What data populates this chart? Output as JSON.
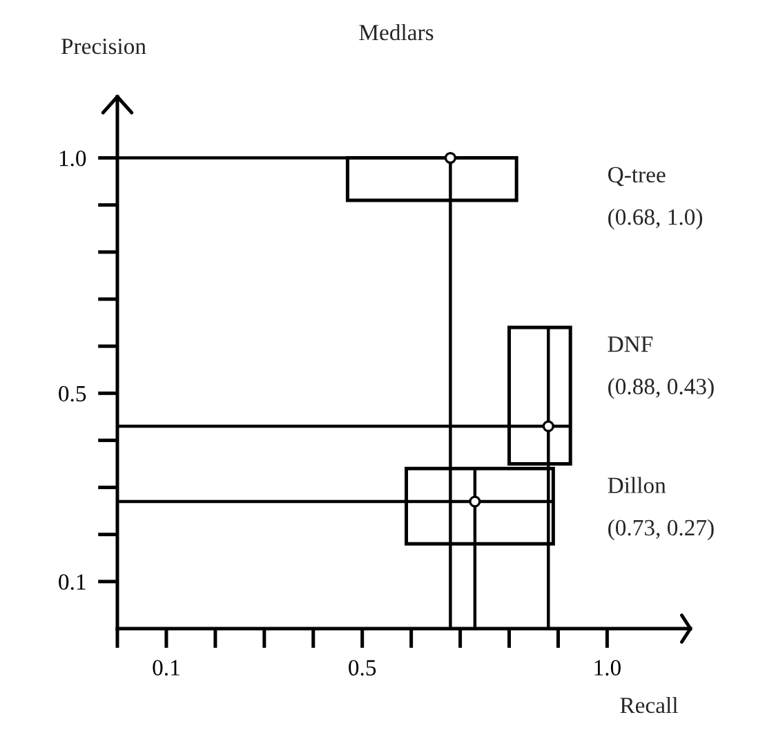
{
  "chart_data": {
    "type": "scatter",
    "title": "Medlars",
    "xlabel": "Recall",
    "ylabel": "Precision",
    "marker": "circle",
    "grid": false,
    "legend": false,
    "xlim": [
      0,
      1.17
    ],
    "ylim": [
      0,
      1.13
    ],
    "xticks": [
      {
        "value": 0,
        "label": null
      },
      0.1,
      {
        "value": 0.2,
        "label": null
      },
      {
        "value": 0.3,
        "label": null
      },
      {
        "value": 0.4,
        "label": null
      },
      0.5,
      {
        "value": 0.6,
        "label": null
      },
      {
        "value": 0.7,
        "label": null
      },
      {
        "value": 0.8,
        "label": null
      },
      {
        "value": 0.9,
        "label": null
      },
      {
        "value": 1.0,
        "label": "1.0"
      }
    ],
    "yticks": [
      0.1,
      {
        "value": 0.2,
        "label": null
      },
      {
        "value": 0.3,
        "label": null
      },
      {
        "value": 0.4,
        "label": null
      },
      0.5,
      {
        "value": 0.6,
        "label": null
      },
      {
        "value": 0.7,
        "label": null
      },
      {
        "value": 0.8,
        "label": null
      },
      {
        "value": 0.9,
        "label": null
      },
      {
        "value": 1.0,
        "label": "1.0"
      }
    ],
    "series": [
      {
        "name": "Q-tree",
        "color": "#000000",
        "x": [
          0.68
        ],
        "values": [
          1.0
        ],
        "xerrors": [
          [
            0.47,
            0.815
          ]
        ],
        "errors": [
          [
            0.91,
            1.0
          ]
        ]
      },
      {
        "name": "DNF",
        "color": "#000000",
        "x": [
          0.88
        ],
        "values": [
          0.43
        ],
        "xerrors": [
          [
            0.8,
            0.925
          ]
        ],
        "errors": [
          [
            0.35,
            0.64
          ]
        ]
      },
      {
        "name": "Dillon",
        "color": "#000000",
        "x": [
          0.73
        ],
        "values": [
          0.27
        ],
        "xerrors": [
          [
            0.59,
            0.89
          ]
        ],
        "errors": [
          [
            0.18,
            0.34
          ]
        ]
      },
      {
        "type": "line",
        "marker": "none",
        "color": "#000000",
        "x": [
          0,
          0.47
        ],
        "values": [
          1.0,
          1.0
        ]
      },
      {
        "type": "line",
        "marker": "none",
        "color": "#000000",
        "x": [
          0.68,
          0.68
        ],
        "values": [
          0,
          0.91
        ]
      },
      {
        "type": "line",
        "marker": "none",
        "color": "#000000",
        "x": [
          0,
          0.8
        ],
        "values": [
          0.43,
          0.43
        ]
      },
      {
        "type": "line",
        "marker": "none",
        "color": "#000000",
        "x": [
          0.88,
          0.88
        ],
        "values": [
          0,
          0.35
        ]
      },
      {
        "type": "line",
        "marker": "none",
        "color": "#000000",
        "x": [
          0,
          0.59
        ],
        "values": [
          0.27,
          0.27
        ]
      },
      {
        "type": "line",
        "marker": "none",
        "color": "#000000",
        "x": [
          0.73,
          0.73
        ],
        "values": [
          0,
          0.18
        ]
      }
    ],
    "annotations": [
      "(0.68, 1.0)",
      "(0.88, 0.43)",
      "(0.73, 0.27)"
    ]
  }
}
